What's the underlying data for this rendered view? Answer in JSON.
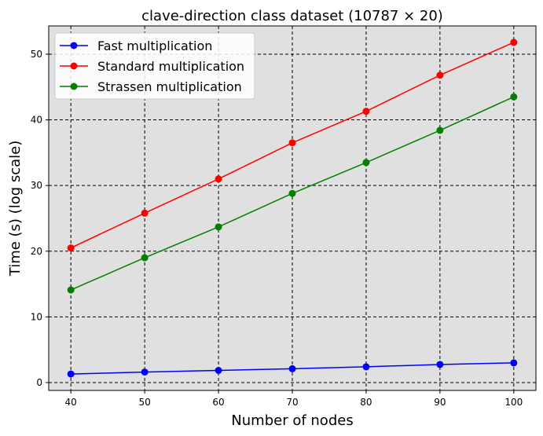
{
  "chart_data": {
    "type": "line",
    "title": "clave-direction class dataset (10787 × 20)",
    "xlabel": "Number of nodes",
    "ylabel": "Time (s) (log scale)",
    "x": [
      40,
      50,
      60,
      70,
      80,
      90,
      100
    ],
    "xticks": [
      "40",
      "50",
      "60",
      "70",
      "80",
      "90",
      "100"
    ],
    "yticks": [
      "0",
      "10",
      "20",
      "30",
      "40",
      "50"
    ],
    "xlim": [
      37,
      103
    ],
    "ylim": [
      -1.2,
      54.3
    ],
    "grid": true,
    "legend_position": "top-left",
    "background_color": "#e0e0e0",
    "series": [
      {
        "name": "Fast multiplication",
        "color": "#0000ff",
        "values": [
          1.3,
          1.6,
          1.85,
          2.1,
          2.4,
          2.75,
          3.0
        ]
      },
      {
        "name": "Standard multiplication",
        "color": "#ff0000",
        "values": [
          20.5,
          25.8,
          31.0,
          36.5,
          41.3,
          46.8,
          51.8
        ]
      },
      {
        "name": "Strassen multiplication",
        "color": "#008000",
        "values": [
          14.1,
          19.0,
          23.7,
          28.8,
          33.5,
          38.4,
          43.5
        ]
      }
    ]
  }
}
